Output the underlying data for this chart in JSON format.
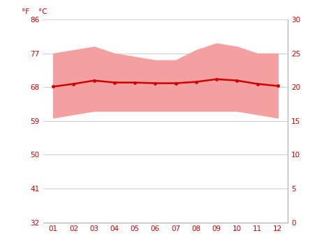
{
  "months": [
    1,
    2,
    3,
    4,
    5,
    6,
    7,
    8,
    9,
    10,
    11,
    12
  ],
  "month_labels": [
    "01",
    "02",
    "03",
    "04",
    "05",
    "06",
    "07",
    "08",
    "09",
    "10",
    "11",
    "12"
  ],
  "avg_temp": [
    20.1,
    20.5,
    21.0,
    20.7,
    20.7,
    20.6,
    20.6,
    20.8,
    21.2,
    21.0,
    20.5,
    20.2
  ],
  "temp_max": [
    25.0,
    25.5,
    26.0,
    25.0,
    24.5,
    24.0,
    24.0,
    25.5,
    26.5,
    26.0,
    25.0,
    25.0
  ],
  "temp_min": [
    15.5,
    16.0,
    16.5,
    16.5,
    16.5,
    16.5,
    16.5,
    16.5,
    16.5,
    16.5,
    16.0,
    15.5
  ],
  "ylim_c": [
    0,
    30
  ],
  "yticks_c": [
    0,
    5,
    10,
    15,
    20,
    25,
    30
  ],
  "yticks_f": [
    32,
    41,
    50,
    59,
    68,
    77,
    86
  ],
  "line_color": "#cc0000",
  "fill_color": "#f5a0a0",
  "bg_color": "#ffffff",
  "grid_color": "#cccccc",
  "tick_label_color": "#cc0000",
  "label_f": "°F",
  "label_c": "°C"
}
